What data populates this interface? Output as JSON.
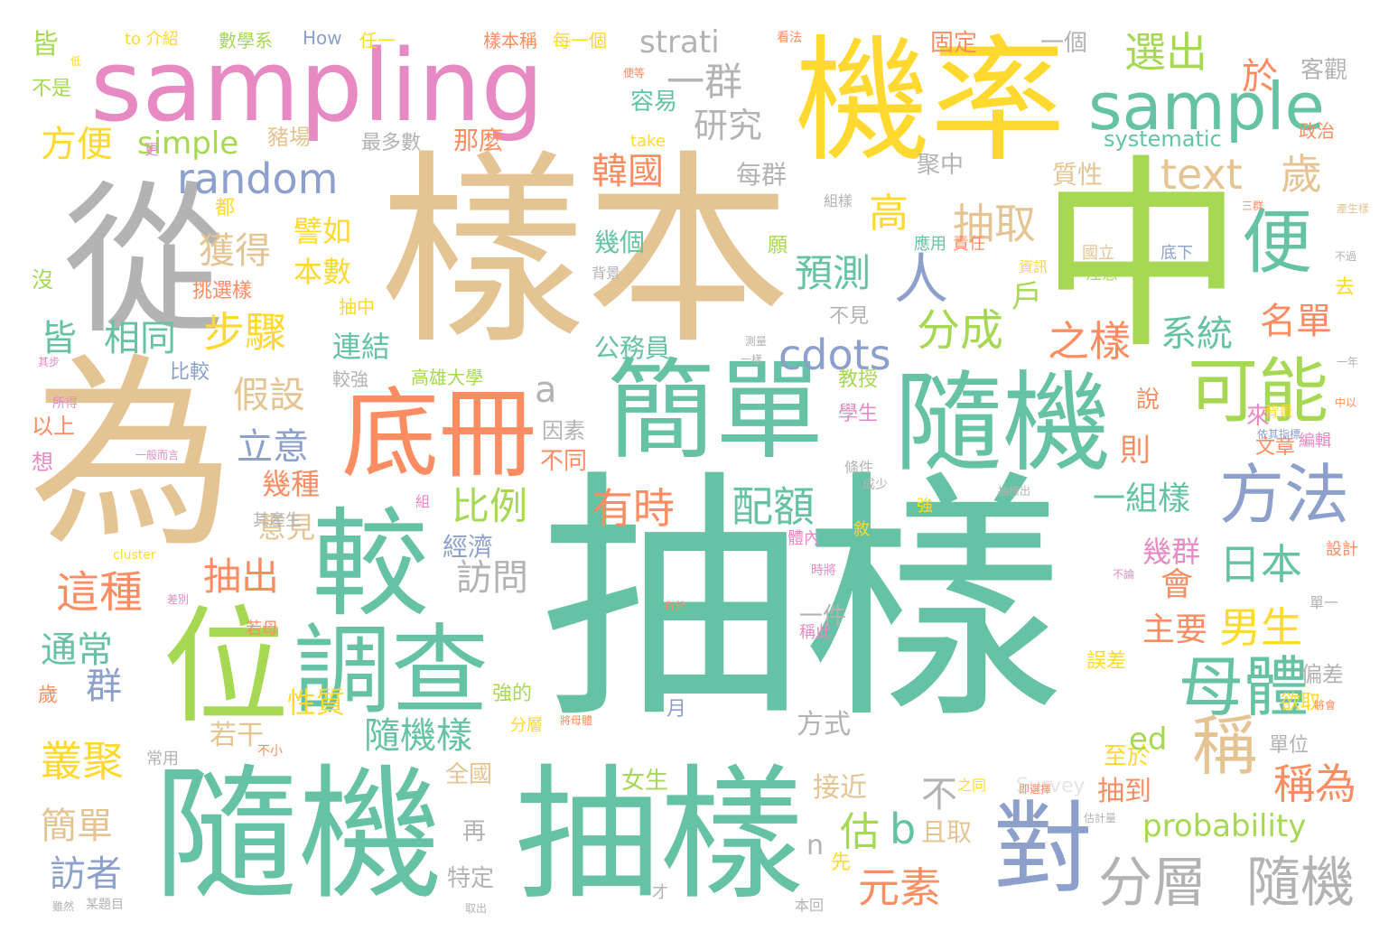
{
  "palette": {
    "teal": "#66c2a5",
    "orange": "#fc8d62",
    "blue": "#8da0cb",
    "pink": "#e78ac3",
    "green": "#a6d854",
    "yellow": "#ffd92f",
    "tan": "#e5c494",
    "gray": "#b3b3b3"
  },
  "words": [
    {
      "text": "抽樣"
    },
    {
      "text": "樣本"
    },
    {
      "text": "為"
    },
    {
      "text": "中"
    },
    {
      "text": "機率"
    },
    {
      "text": "sampling"
    },
    {
      "text": "從"
    },
    {
      "text": "隨機"
    },
    {
      "text": "抽樣"
    },
    {
      "text": "簡單"
    },
    {
      "text": "隨機"
    },
    {
      "text": "較"
    },
    {
      "text": "位"
    },
    {
      "text": "底冊"
    },
    {
      "text": "調查"
    },
    {
      "text": "對"
    },
    {
      "text": "sample"
    },
    {
      "text": "便"
    },
    {
      "text": "可能"
    },
    {
      "text": "方法"
    },
    {
      "text": "母體"
    },
    {
      "text": "稱"
    },
    {
      "text": "分層"
    },
    {
      "text": "隨機"
    },
    {
      "text": "random"
    },
    {
      "text": "text"
    },
    {
      "text": "歲"
    },
    {
      "text": "一群"
    },
    {
      "text": "選出"
    },
    {
      "text": "於"
    },
    {
      "text": "研究"
    },
    {
      "text": "strati"
    },
    {
      "text": "抽取"
    },
    {
      "text": "人"
    },
    {
      "text": "分成"
    },
    {
      "text": "之樣"
    },
    {
      "text": "cdots"
    },
    {
      "text": "預測"
    },
    {
      "text": "配額"
    },
    {
      "text": "有時"
    },
    {
      "text": "日本"
    },
    {
      "text": "男生"
    },
    {
      "text": "稱為"
    },
    {
      "text": "名單"
    },
    {
      "text": "系統"
    },
    {
      "text": "元素"
    },
    {
      "text": "比例"
    },
    {
      "text": "訪問"
    },
    {
      "text": "獲得"
    },
    {
      "text": "步驟"
    },
    {
      "text": "假設"
    },
    {
      "text": "立意"
    },
    {
      "text": "這種"
    },
    {
      "text": "抽出"
    },
    {
      "text": "通常"
    },
    {
      "text": "叢聚"
    },
    {
      "text": "簡單"
    },
    {
      "text": "訪者"
    },
    {
      "text": "相同"
    },
    {
      "text": "皆"
    },
    {
      "text": "方便"
    },
    {
      "text": "simple"
    },
    {
      "text": "韓國"
    },
    {
      "text": "隨機樣"
    },
    {
      "text": "probability"
    },
    {
      "text": "一組樣"
    },
    {
      "text": "會"
    },
    {
      "text": "主要"
    },
    {
      "text": "幾群"
    },
    {
      "text": "群"
    },
    {
      "text": "幾種"
    },
    {
      "text": "意見"
    },
    {
      "text": "性質"
    },
    {
      "text": "若干"
    },
    {
      "text": "經濟"
    },
    {
      "text": "連結"
    },
    {
      "text": "本數"
    },
    {
      "text": "譬如"
    },
    {
      "text": "高"
    },
    {
      "text": "戶"
    },
    {
      "text": "systematic"
    },
    {
      "text": "質性"
    },
    {
      "text": "每群"
    },
    {
      "text": "聚中"
    },
    {
      "text": "幾個"
    },
    {
      "text": "公務員"
    },
    {
      "text": "方式"
    },
    {
      "text": "接近"
    },
    {
      "text": "估"
    },
    {
      "text": "b"
    },
    {
      "text": "且取"
    },
    {
      "text": "n"
    },
    {
      "text": "抽到"
    },
    {
      "text": "至於"
    },
    {
      "text": "a"
    },
    {
      "text": "則"
    },
    {
      "text": "ed"
    },
    {
      "text": "不"
    },
    {
      "text": "全國"
    },
    {
      "text": "女生"
    },
    {
      "text": "再"
    },
    {
      "text": "特定"
    },
    {
      "text": "一件"
    },
    {
      "text": "不同"
    },
    {
      "text": "因素"
    },
    {
      "text": "Survey"
    },
    {
      "text": "以上"
    },
    {
      "text": "想"
    },
    {
      "text": "沒"
    },
    {
      "text": "都"
    },
    {
      "text": "皆"
    },
    {
      "text": "不是"
    },
    {
      "text": "to 介紹"
    },
    {
      "text": "數學系"
    },
    {
      "text": "How"
    },
    {
      "text": "任一"
    },
    {
      "text": "樣本稱"
    },
    {
      "text": "每一個"
    },
    {
      "text": "固定"
    },
    {
      "text": "一個"
    },
    {
      "text": "客觀"
    },
    {
      "text": "容易"
    },
    {
      "text": "take"
    },
    {
      "text": "政治"
    },
    {
      "text": "最多數"
    },
    {
      "text": "那麼"
    },
    {
      "text": "豬場"
    },
    {
      "text": "挑選樣"
    },
    {
      "text": "比較"
    },
    {
      "text": "抽中"
    },
    {
      "text": "較強"
    },
    {
      "text": "高雄大學"
    },
    {
      "text": "不見"
    },
    {
      "text": "教授"
    },
    {
      "text": "學生"
    },
    {
      "text": "說"
    },
    {
      "text": "來"
    },
    {
      "text": "文章"
    },
    {
      "text": "偏差"
    },
    {
      "text": "歲"
    },
    {
      "text": "單位"
    },
    {
      "text": "常用"
    },
    {
      "text": "強的"
    },
    {
      "text": "分層"
    },
    {
      "text": "月"
    },
    {
      "text": "應用"
    },
    {
      "text": "責任"
    },
    {
      "text": "資訊"
    },
    {
      "text": "國立"
    },
    {
      "text": "注意"
    },
    {
      "text": "底下"
    },
    {
      "text": "背景"
    },
    {
      "text": "願"
    },
    {
      "text": "組樣"
    },
    {
      "text": "去"
    },
    {
      "text": "背景"
    },
    {
      "text": "欲取"
    },
    {
      "text": "誤差"
    },
    {
      "text": "稱此"
    },
    {
      "text": "設計"
    },
    {
      "text": "體內"
    },
    {
      "text": "敘"
    },
    {
      "text": "強"
    },
    {
      "text": "其產生"
    },
    {
      "text": "組"
    },
    {
      "text": "本回"
    },
    {
      "text": "先"
    },
    {
      "text": "才"
    },
    {
      "text": "cluster"
    },
    {
      "text": "時將"
    },
    {
      "text": "編輯"
    },
    {
      "text": "更"
    },
    {
      "text": "若母"
    },
    {
      "text": "條件"
    },
    {
      "text": "成少"
    },
    {
      "text": "其步"
    },
    {
      "text": "所得"
    },
    {
      "text": "之同"
    },
    {
      "text": "單一"
    },
    {
      "text": "估計量"
    },
    {
      "text": "一般而言"
    },
    {
      "text": "依其指標"
    },
    {
      "text": "中以"
    },
    {
      "text": "一年"
    },
    {
      "text": "將會"
    },
    {
      "text": "看法"
    },
    {
      "text": "便等"
    },
    {
      "text": "三群"
    },
    {
      "text": "產生樣"
    },
    {
      "text": "有分"
    },
    {
      "text": "不小"
    },
    {
      "text": "將母體"
    },
    {
      "text": "某題目"
    },
    {
      "text": "雖然"
    },
    {
      "text": "取出"
    },
    {
      "text": "抽樣出"
    },
    {
      "text": "即選擇"
    },
    {
      "text": "一樣"
    },
    {
      "text": "測量"
    },
    {
      "text": "不過"
    },
    {
      "text": "不論"
    },
    {
      "text": "差別"
    },
    {
      "text": "低"
    }
  ]
}
